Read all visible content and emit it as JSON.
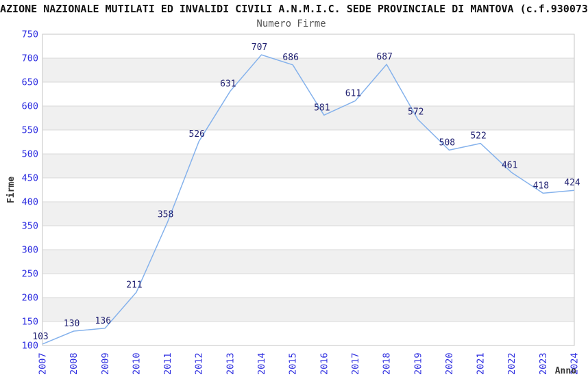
{
  "header": {
    "title": "AZIONE NAZIONALE MUTILATI ED INVALIDI CIVILI A.N.M.I.C. SEDE PROVINCIALE DI MANTOVA (c.f.930073",
    "subtitle": "Numero Firme"
  },
  "chart_data": {
    "type": "line",
    "title": "Numero Firme",
    "x": [
      "2007",
      "2008",
      "2009",
      "2010",
      "2011",
      "2012",
      "2013",
      "2014",
      "2015",
      "2016",
      "2017",
      "2018",
      "2019",
      "2020",
      "2021",
      "2022",
      "2023",
      "2024"
    ],
    "values": [
      103,
      130,
      136,
      211,
      358,
      526,
      631,
      707,
      686,
      581,
      611,
      687,
      572,
      508,
      522,
      461,
      418,
      424
    ],
    "xlabel": "Anno",
    "ylabel": "Firme",
    "ylim": [
      100,
      750
    ],
    "ytick_step": 50,
    "grid": true,
    "legend": "none",
    "band_style": "alternating horizontal bands",
    "colors": {
      "line": "#85b2ec",
      "tick_label": "#2d2de0",
      "data_label": "#1f1f70",
      "band": "#f0f0f0",
      "gridline": "#d8d8d8",
      "plot_border": "#c6c6c6",
      "axis_title": "#333333",
      "background": "#ffffff"
    }
  }
}
